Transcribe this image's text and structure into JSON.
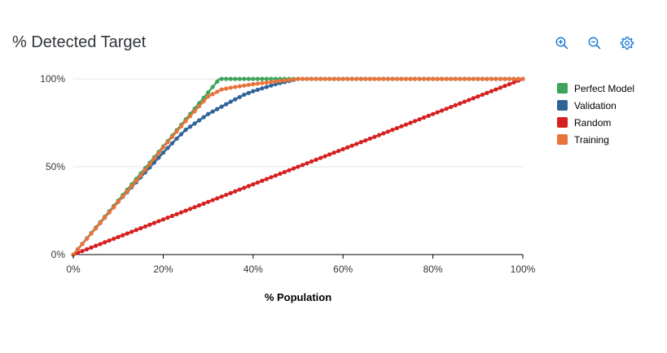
{
  "header": {
    "title": "% Detected Target",
    "tools": [
      {
        "name": "zoom-in-icon"
      },
      {
        "name": "zoom-out-icon"
      },
      {
        "name": "settings-icon"
      }
    ]
  },
  "chart_data": {
    "type": "line",
    "xlabel": "% Population",
    "ylabel": "",
    "x_ticks": [
      "0%",
      "20%",
      "40%",
      "60%",
      "80%",
      "100%"
    ],
    "x_tick_values": [
      0,
      20,
      40,
      60,
      80,
      100
    ],
    "y_ticks": [
      "0%",
      "50%",
      "100%"
    ],
    "y_tick_values": [
      0,
      50,
      100
    ],
    "xlim": [
      0,
      100
    ],
    "ylim": [
      0,
      100
    ],
    "grid": "horizontal",
    "legend_position": "right",
    "series": [
      {
        "name": "Perfect Model",
        "color": "#3fa45b",
        "points": [
          [
            0,
            0
          ],
          [
            32.5,
            100
          ],
          [
            100,
            100
          ]
        ]
      },
      {
        "name": "Validation",
        "color": "#2f6497",
        "points": [
          [
            0,
            0
          ],
          [
            5,
            15
          ],
          [
            10,
            30
          ],
          [
            15,
            44
          ],
          [
            20,
            58
          ],
          [
            23,
            66
          ],
          [
            25,
            71
          ],
          [
            30,
            80
          ],
          [
            35,
            87
          ],
          [
            38,
            91
          ],
          [
            40,
            93
          ],
          [
            45,
            97
          ],
          [
            50,
            100
          ],
          [
            100,
            100
          ]
        ]
      },
      {
        "name": "Random",
        "color": "#d62020",
        "points": [
          [
            0,
            0
          ],
          [
            100,
            100
          ]
        ]
      },
      {
        "name": "Training",
        "color": "#e8743b",
        "points": [
          [
            0,
            0
          ],
          [
            5,
            15
          ],
          [
            10,
            30
          ],
          [
            15,
            45
          ],
          [
            20,
            61
          ],
          [
            25,
            76
          ],
          [
            30,
            90
          ],
          [
            33,
            94
          ],
          [
            35,
            95
          ],
          [
            40,
            97
          ],
          [
            45,
            98.5
          ],
          [
            50,
            100
          ],
          [
            100,
            100
          ]
        ]
      }
    ]
  }
}
